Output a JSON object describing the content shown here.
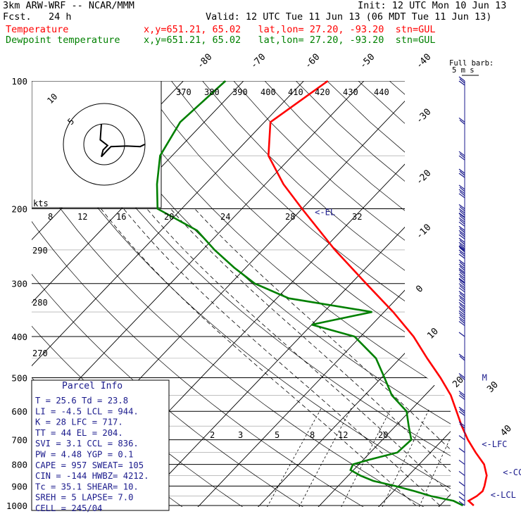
{
  "header": {
    "model": "3km ARW-WRF -- NCAR/MMM",
    "init": "Init: 12 UTC Mon 10 Jun 13",
    "fcst": "Fcst.   24 h",
    "valid": "Valid: 12 UTC Tue 11 Jun 13 (06 MDT Tue 11 Jun 13)",
    "legend": [
      {
        "name": "Temperature",
        "color": "#ff0000",
        "info": "x,y=651.21, 65.02   lat,lon= 27.20, -93.20  stn=GUL"
      },
      {
        "name": "Dewpoint temperature",
        "color": "#008000",
        "info": "x,y=651.21, 65.02   lat,lon= 27.20, -93.20  stn=GUL"
      }
    ]
  },
  "chart_data": {
    "type": "skew-t",
    "yaxis_pressure_hPa": [
      100,
      200,
      300,
      400,
      500,
      600,
      700,
      800,
      900,
      1000
    ],
    "temperature_labels_C": [
      "-80",
      "-70",
      "-60",
      "-50",
      "-40",
      "-30",
      "-20",
      "-10",
      "0",
      "10",
      "20",
      "30",
      "40"
    ],
    "theta_labels_K": [
      "370",
      "380",
      "390",
      "400",
      "410",
      "420",
      "430",
      "440",
      "290",
      "280",
      "270"
    ],
    "mixing_ratio_labels": [
      "2",
      "3",
      "5",
      "8",
      "12",
      "20"
    ],
    "hodo_speed_labels": [
      "8",
      "12",
      "16",
      "20",
      "24",
      "28",
      "32"
    ],
    "hodograph": {
      "rings": [
        "5",
        "10"
      ],
      "units": "kts",
      "trace": [
        [
          -0.25,
          -1.8
        ],
        [
          -0.35,
          -0.4
        ],
        [
          0.3,
          0.1
        ],
        [
          -0.1,
          0.5
        ],
        [
          -0.25,
          1.1
        ],
        [
          0.3,
          0.5
        ],
        [
          0.6,
          0.2
        ],
        [
          2.0,
          0.15
        ],
        [
          3.2,
          0.2
        ],
        [
          3.6,
          0.0
        ]
      ]
    },
    "series": [
      {
        "name": "Temperature",
        "color": "#ff0000",
        "points": [
          [
            1000,
            25.6
          ],
          [
            975,
            24.0
          ],
          [
            950,
            24.6
          ],
          [
            925,
            24.8
          ],
          [
            900,
            24.3
          ],
          [
            850,
            23.0
          ],
          [
            800,
            20.8
          ],
          [
            750,
            17.5
          ],
          [
            700,
            14.2
          ],
          [
            650,
            11.0
          ],
          [
            600,
            7.8
          ],
          [
            550,
            4.3
          ],
          [
            500,
            -0.2
          ],
          [
            450,
            -5.5
          ],
          [
            400,
            -11.2
          ],
          [
            350,
            -18.5
          ],
          [
            300,
            -27.5
          ],
          [
            250,
            -38.0
          ],
          [
            200,
            -50.0
          ],
          [
            175,
            -57.0
          ],
          [
            150,
            -64.0
          ],
          [
            125,
            -69.0
          ],
          [
            100,
            -66.0
          ]
        ]
      },
      {
        "name": "Dewpoint temperature",
        "color": "#008000",
        "points": [
          [
            1000,
            23.8
          ],
          [
            975,
            21.5
          ],
          [
            950,
            17.0
          ],
          [
            925,
            13.5
          ],
          [
            900,
            9.5
          ],
          [
            875,
            5.0
          ],
          [
            850,
            2.0
          ],
          [
            825,
            -0.5
          ],
          [
            800,
            -1.0
          ],
          [
            780,
            1.0
          ],
          [
            750,
            4.5
          ],
          [
            700,
            4.8
          ],
          [
            650,
            2.2
          ],
          [
            600,
            -0.5
          ],
          [
            550,
            -5.5
          ],
          [
            500,
            -9.5
          ],
          [
            450,
            -14.0
          ],
          [
            400,
            -21.0
          ],
          [
            375,
            -30.0
          ],
          [
            350,
            -22.0
          ],
          [
            325,
            -38.0
          ],
          [
            300,
            -46.0
          ],
          [
            275,
            -52.0
          ],
          [
            250,
            -58.0
          ],
          [
            225,
            -64.0
          ],
          [
            200,
            -74.0
          ],
          [
            175,
            -78.0
          ],
          [
            150,
            -82.0
          ],
          [
            125,
            -84.0
          ],
          [
            100,
            -83.0
          ]
        ]
      }
    ],
    "annotations": [
      {
        "text": "<-EL",
        "p": 204,
        "t": -48.0
      },
      {
        "text": "<-LFC",
        "p": 717,
        "t": 16.5
      },
      {
        "text": "<-CCL",
        "p": 836,
        "t": 24.5
      },
      {
        "text": "<-LCL",
        "p": 944,
        "t": 26.0
      },
      {
        "text": "M",
        "p": 500,
        "t": 6.0
      }
    ],
    "wind_label": "Full barb:",
    "wind_label2": "5 m s",
    "wind_barbs": [
      {
        "p": 100,
        "speed": 15
      },
      {
        "p": 125,
        "speed": 10
      },
      {
        "p": 150,
        "speed": 15
      },
      {
        "p": 165,
        "speed": 15
      },
      {
        "p": 180,
        "speed": 25
      },
      {
        "p": 200,
        "speed": 25
      },
      {
        "p": 210,
        "speed": 25
      },
      {
        "p": 225,
        "speed": 30
      },
      {
        "p": 240,
        "speed": 30
      },
      {
        "p": 250,
        "speed": 35
      },
      {
        "p": 270,
        "speed": 35
      },
      {
        "p": 285,
        "speed": 35
      },
      {
        "p": 300,
        "speed": 35
      },
      {
        "p": 320,
        "speed": 30
      },
      {
        "p": 340,
        "speed": 30
      },
      {
        "p": 360,
        "speed": 25
      },
      {
        "p": 400,
        "speed": 5
      },
      {
        "p": 450,
        "speed": 10
      },
      {
        "p": 500,
        "speed": 10
      },
      {
        "p": 550,
        "speed": 15
      },
      {
        "p": 600,
        "speed": 15
      },
      {
        "p": 650,
        "speed": 10
      },
      {
        "p": 700,
        "speed": 5
      },
      {
        "p": 750,
        "speed": 5
      },
      {
        "p": 800,
        "speed": 5
      },
      {
        "p": 850,
        "speed": 5
      },
      {
        "p": 900,
        "speed": 5
      },
      {
        "p": 950,
        "speed": 5
      },
      {
        "p": 975,
        "speed": 5
      },
      {
        "p": 1000,
        "speed": 5
      }
    ]
  },
  "parcel_info": {
    "title": "Parcel Info",
    "rows": [
      "T  =    25.6  Td =  23.8",
      "LI =    -4.5  LCL =  944.",
      "K  =     28  LFC =  717.",
      "TT =     44  EL  =  204.",
      "SVI =    3.1  CCL =  836.",
      "PW =   4.48  YGP =   0.1",
      "CAPE =  957  SWEAT=  105",
      "CIN =  -144  HWBZ= 4212.",
      "Tc =   35.1  SHEAR=  10.",
      "SREH =    5  LAPSE=  7.0",
      "CELL = 245/04"
    ]
  }
}
